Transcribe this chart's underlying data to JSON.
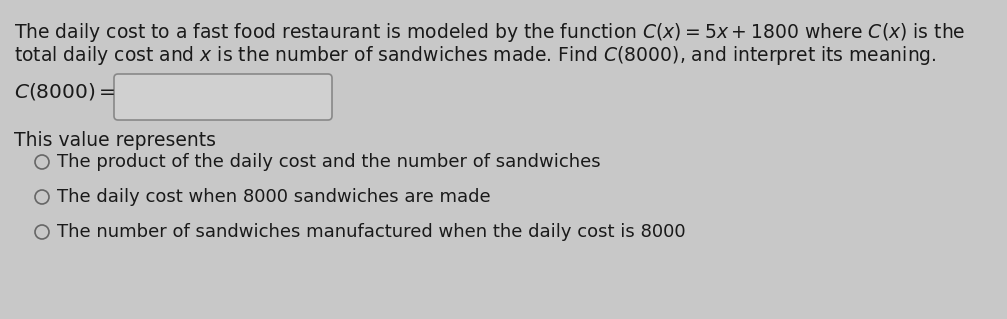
{
  "background_color": "#c8c8c8",
  "box_fill_color": "#d0d0d0",
  "title_line1": "The daily cost to a fast food restaurant is modeled by the function $C(x) = 5x + 1800$ where $C(x)$ is the",
  "title_line2": "total daily cost and $x$ is the number of sandwiches made. Find $C(8000)$, and interpret its meaning.",
  "equation_label": "$C(8000) =$",
  "this_value_text": "This value represents",
  "options": [
    "The product of the daily cost and the number of sandwiches",
    "The daily cost when 8000 sandwiches are made",
    "The number of sandwiches manufactured when the daily cost is 8000"
  ],
  "font_size_main": 13.5,
  "font_size_options": 13.0,
  "text_color": "#1a1a1a",
  "circle_color": "#666666",
  "box_edge_color": "#888888"
}
